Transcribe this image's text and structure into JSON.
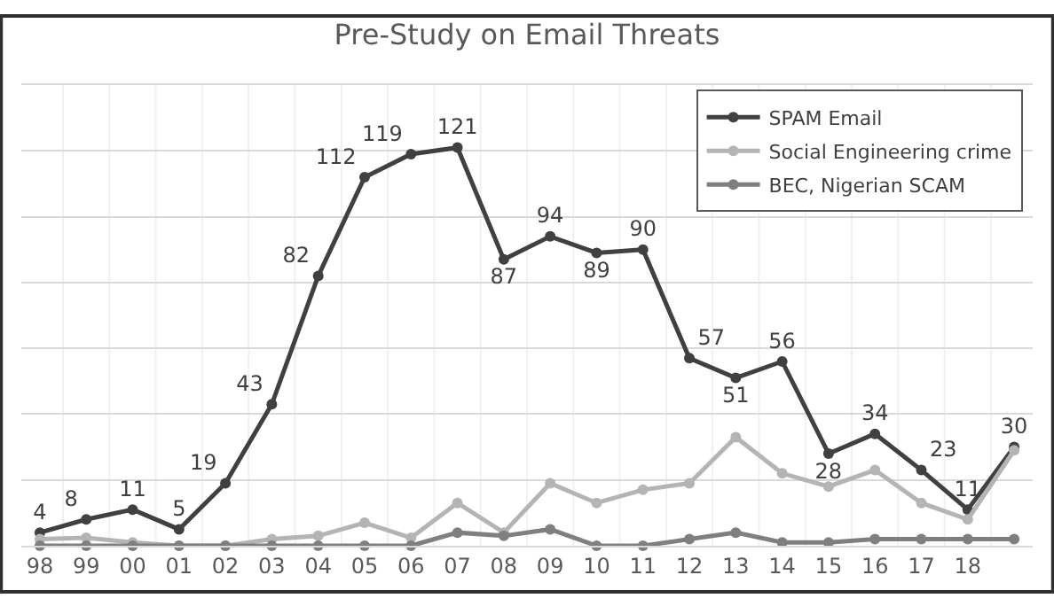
{
  "chart_data": {
    "type": "line",
    "title": "Pre-Study on Email Threats",
    "categories": [
      "98",
      "99",
      "00",
      "01",
      "02",
      "03",
      "04",
      "05",
      "06",
      "07",
      "08",
      "09",
      "10",
      "11",
      "12",
      "13",
      "14",
      "15",
      "16",
      "17",
      "18",
      null
    ],
    "series": [
      {
        "name": "SPAM Email",
        "color": "#404040",
        "values": [
          4,
          8,
          11,
          5,
          19,
          43,
          82,
          112,
          119,
          121,
          87,
          94,
          89,
          90,
          57,
          51,
          56,
          28,
          34,
          23,
          11,
          30
        ],
        "value_labels": [
          "4",
          "8",
          "11",
          "5",
          "19",
          "43",
          "82",
          "112",
          "119",
          "121",
          "87",
          "94",
          "89",
          "90",
          "57",
          "51",
          "56",
          "28",
          "34",
          "23",
          "11",
          "30"
        ]
      },
      {
        "name": "Social Engineering crime",
        "color": "#b4b4b4",
        "values": [
          2,
          2.4,
          1,
          0,
          0,
          2,
          3,
          7,
          2.4,
          13,
          4,
          19,
          13,
          17,
          19,
          33,
          22,
          18,
          23,
          13,
          8,
          29
        ]
      },
      {
        "name": "BEC, Nigerian SCAM",
        "color": "#7f7f7f",
        "values": [
          0,
          0,
          0,
          0,
          0,
          0,
          0,
          0,
          0,
          4,
          3,
          5,
          0,
          0,
          2,
          4,
          1,
          1,
          2,
          2,
          2,
          2
        ]
      }
    ],
    "ylim": [
      0,
      140
    ],
    "yticks": [
      0,
      20,
      40,
      60,
      80,
      100,
      120,
      140
    ],
    "tick_labels": "x",
    "grid": true,
    "legend": "top right",
    "marker": "circle",
    "line_style": "solid"
  }
}
